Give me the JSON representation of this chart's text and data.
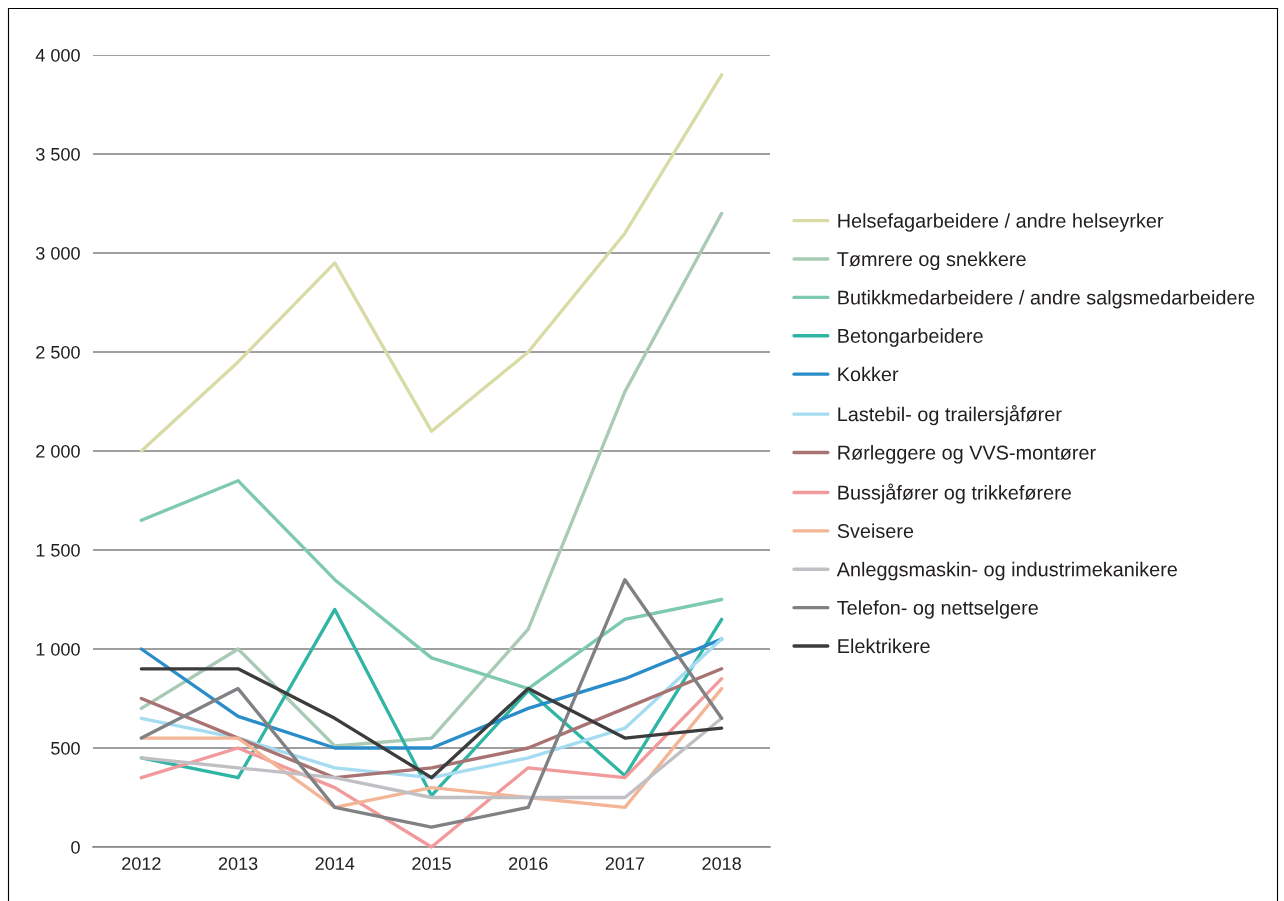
{
  "chart_data": {
    "type": "line",
    "categories": [
      "2012",
      "2013",
      "2014",
      "2015",
      "2016",
      "2017",
      "2018"
    ],
    "series": [
      {
        "name": "Helsefagarbeidere / andre helseyrker",
        "color": "#d9dba6",
        "values": [
          2000,
          2450,
          2950,
          2100,
          2500,
          3100,
          3900
        ]
      },
      {
        "name": "Tømrere og snekkere",
        "color": "#a9cbb6",
        "values": [
          700,
          1000,
          510,
          550,
          1100,
          2300,
          3200
        ]
      },
      {
        "name": "Butikkmedarbeidere / andre salgsmedarbeidere",
        "color": "#7ecaae",
        "values": [
          1650,
          1850,
          1350,
          955,
          800,
          1150,
          1250
        ]
      },
      {
        "name": "Betongarbeidere",
        "color": "#30b5a5",
        "values": [
          450,
          350,
          1200,
          260,
          790,
          360,
          1150
        ]
      },
      {
        "name": "Kokker",
        "color": "#2a8dc9",
        "values": [
          1000,
          660,
          500,
          500,
          700,
          850,
          1050
        ]
      },
      {
        "name": "Lastebil- og trailersjåfører",
        "color": "#a5dcf2",
        "values": [
          650,
          550,
          400,
          350,
          450,
          600,
          1050
        ]
      },
      {
        "name": "Rørleggere og VVS-montører",
        "color": "#a87473",
        "values": [
          750,
          550,
          350,
          400,
          500,
          700,
          900
        ]
      },
      {
        "name": "Bussjåfører og trikkeførere",
        "color": "#f29a9b",
        "values": [
          350,
          500,
          300,
          0,
          400,
          350,
          850
        ]
      },
      {
        "name": "Sveisere",
        "color": "#f4b597",
        "values": [
          550,
          550,
          200,
          300,
          250,
          200,
          800
        ]
      },
      {
        "name": "Anleggsmaskin- og industrimekanikere",
        "color": "#c0c0c4",
        "values": [
          450,
          400,
          350,
          250,
          250,
          250,
          650
        ]
      },
      {
        "name": "Telefon- og nettselgere",
        "color": "#808184",
        "values": [
          550,
          800,
          200,
          100,
          200,
          1350,
          650
        ]
      },
      {
        "name": "Elektrikere",
        "color": "#3c3c3c",
        "values": [
          900,
          900,
          650,
          350,
          800,
          550,
          600
        ]
      }
    ],
    "ylim": [
      0,
      4000
    ],
    "yticks": [
      0,
      500,
      {
        "value": 1000,
        "label": "1 000"
      },
      {
        "value": 1500,
        "label": "1 500"
      },
      {
        "value": 2000,
        "label": "2 000"
      },
      {
        "value": 2500,
        "label": "2 500"
      },
      {
        "value": 3000,
        "label": "3 000"
      },
      {
        "value": 3500,
        "label": "3 500"
      },
      {
        "value": 4000,
        "label": "4 000"
      }
    ],
    "grid": "y",
    "legend": "right"
  }
}
